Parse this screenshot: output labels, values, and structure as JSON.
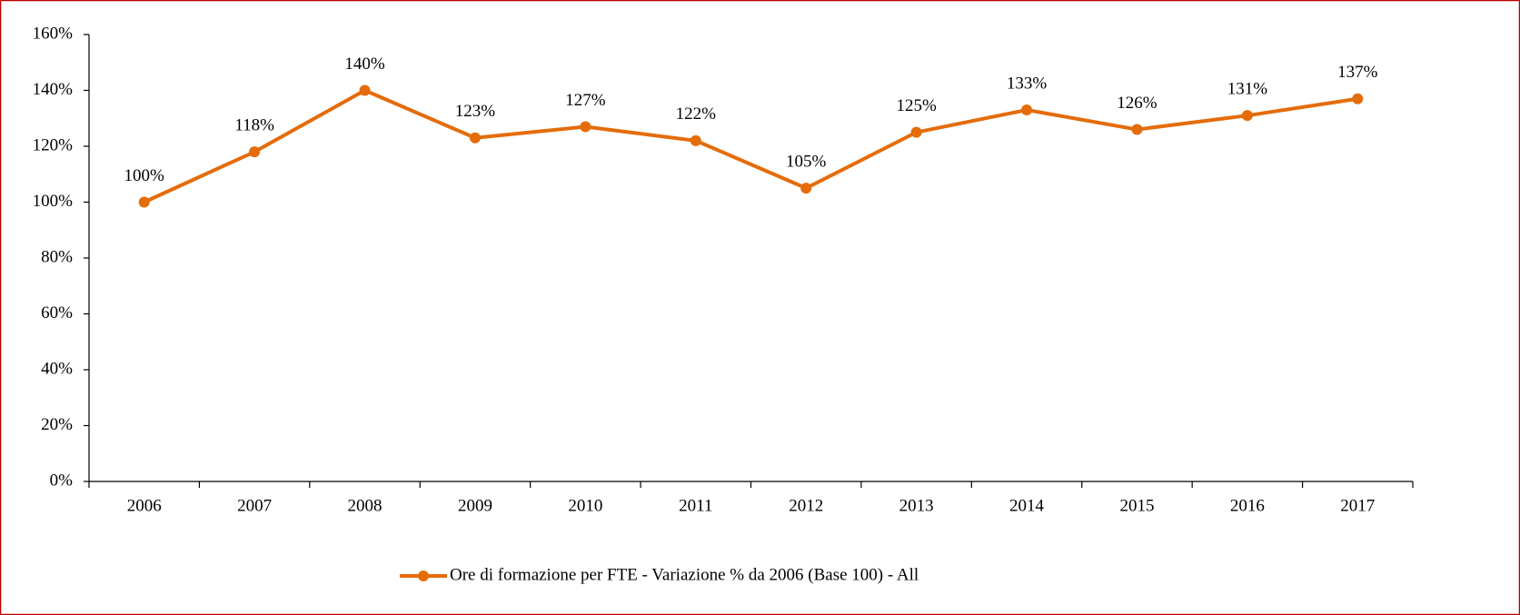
{
  "chart_data": {
    "type": "line",
    "categories": [
      "2006",
      "2007",
      "2008",
      "2009",
      "2010",
      "2011",
      "2012",
      "2013",
      "2014",
      "2015",
      "2016",
      "2017"
    ],
    "series": [
      {
        "name": "Ore di formazione per FTE - Variazione % da 2006 (Base 100) - All",
        "color": "#e46c0a",
        "values": [
          100,
          118,
          140,
          123,
          127,
          122,
          105,
          125,
          133,
          126,
          131,
          137
        ],
        "value_labels": [
          "100%",
          "118%",
          "140%",
          "123%",
          "127%",
          "122%",
          "105%",
          "125%",
          "133%",
          "126%",
          "131%",
          "137%"
        ]
      }
    ],
    "ylim": [
      0,
      160
    ],
    "yticks": [
      {
        "value": 0,
        "label": "0%"
      },
      {
        "value": 20,
        "label": "20%"
      },
      {
        "value": 40,
        "label": "40%"
      },
      {
        "value": 60,
        "label": "60%"
      },
      {
        "value": 80,
        "label": "80%"
      },
      {
        "value": 100,
        "label": "100%"
      },
      {
        "value": 120,
        "label": "120%"
      },
      {
        "value": 140,
        "label": "140%"
      },
      {
        "value": 160,
        "label": "160%"
      }
    ],
    "grid": false,
    "legend": "bottom"
  }
}
